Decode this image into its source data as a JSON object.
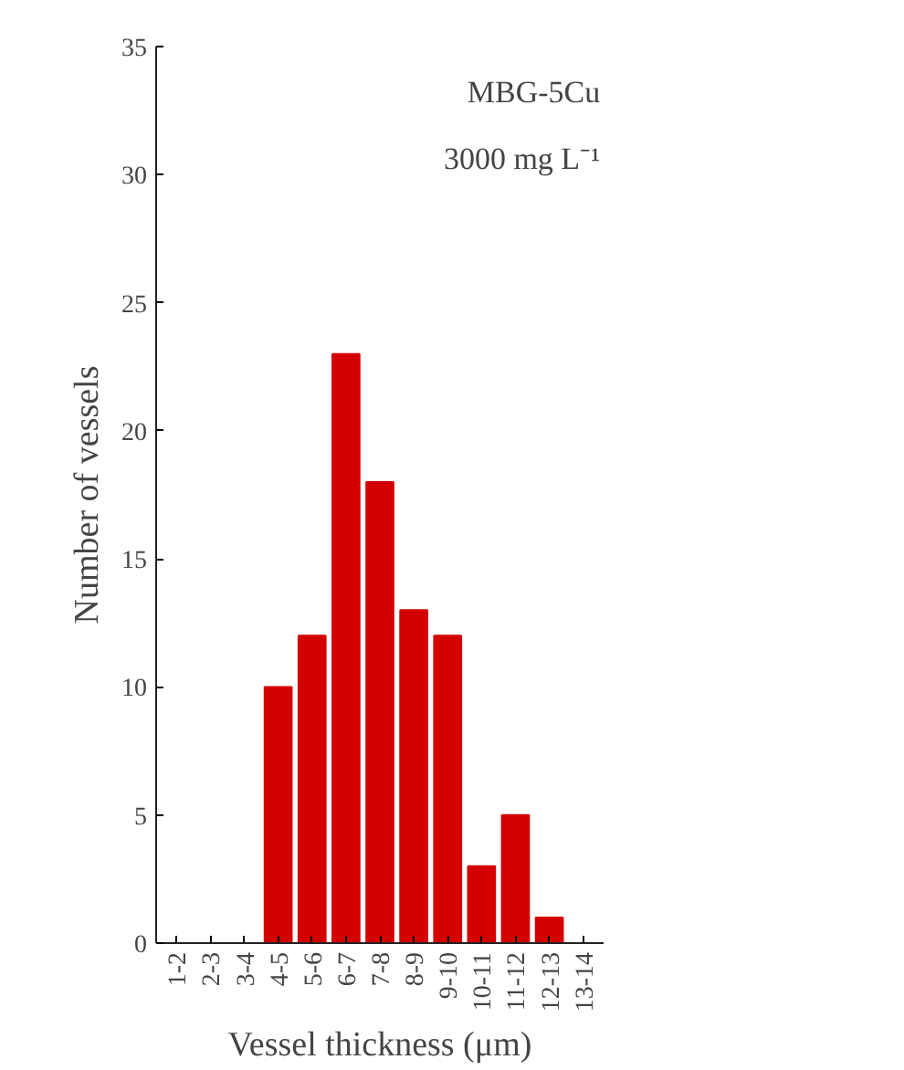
{
  "chart_data": {
    "type": "bar",
    "xlabel": "Vessel thickness (μm)",
    "ylabel": "Number of vessels",
    "categories": [
      "1-2",
      "2-3",
      "3-4",
      "4-5",
      "5-6",
      "6-7",
      "7-8",
      "8-9",
      "9-10",
      "10-11",
      "11-12",
      "12-13",
      "13-14"
    ],
    "values": [
      0,
      0,
      0,
      10,
      12,
      23,
      18,
      13,
      12,
      3,
      5,
      1,
      0
    ],
    "color": "#d40000",
    "ylim": [
      0,
      35
    ],
    "yticks": [
      0,
      5,
      10,
      15,
      20,
      25,
      30,
      35
    ],
    "grid": false,
    "annotations": [
      "MBG-5Cu",
      "3000 mg L⁻¹"
    ]
  }
}
